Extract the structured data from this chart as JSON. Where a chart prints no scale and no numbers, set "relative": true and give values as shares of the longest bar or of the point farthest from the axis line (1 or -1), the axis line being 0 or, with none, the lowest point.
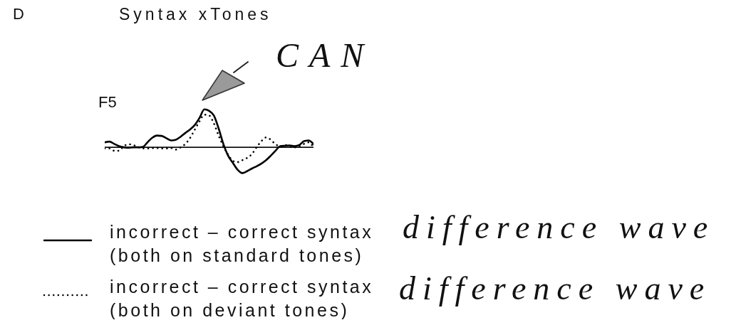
{
  "chart_data": {
    "type": "line",
    "title": "Syntax xTones",
    "annotations": [
      "D",
      "F5",
      "CAN",
      "difference wave",
      "difference wave"
    ],
    "categories": [
      null,
      null,
      null,
      null,
      null,
      null,
      null,
      null,
      null,
      null,
      null,
      null,
      null,
      null,
      null,
      null,
      null,
      null,
      null,
      null,
      null,
      null,
      null,
      null,
      null,
      null,
      null,
      null,
      null,
      null,
      null,
      null,
      null,
      null,
      null,
      null,
      null,
      null,
      null,
      null,
      null,
      null,
      null,
      null,
      null
    ],
    "relative": true,
    "legend": "bottom left",
    "series": [
      {
        "name": "incorrect – correct syntax (both on standard tones)",
        "color": "#000000",
        "line_style": "solid",
        "values": [
          0.13,
          0.15,
          0.09,
          0.03,
          0,
          -0.01,
          0,
          0,
          0.01,
          0.13,
          0.25,
          0.31,
          0.3,
          0.24,
          0.18,
          0.2,
          0.28,
          0.38,
          0.47,
          0.59,
          0.78,
          1,
          0.96,
          0.84,
          0.5,
          0.09,
          -0.22,
          -0.41,
          -0.59,
          -0.68,
          -0.63,
          -0.56,
          -0.5,
          -0.43,
          -0.34,
          -0.22,
          -0.09,
          0.03,
          0.04,
          0.05,
          0.03,
          0.06,
          0.16,
          0.18,
          0.08
        ]
      },
      {
        "name": "incorrect – correct syntax (both on deviant tones)",
        "color": "#000000",
        "line_style": "dotted",
        "values": [
          -0.03,
          -0.03,
          -0.09,
          -0.09,
          0.03,
          0.08,
          0.06,
          0.01,
          -0.03,
          -0.03,
          -0.02,
          -0.02,
          -0.03,
          -0.03,
          -0.02,
          -0.06,
          0,
          0.09,
          0.25,
          0.47,
          0.69,
          0.86,
          0.84,
          0.63,
          0.31,
          0.03,
          -0.19,
          -0.36,
          -0.39,
          -0.34,
          -0.28,
          -0.18,
          0,
          0.16,
          0.26,
          0.2,
          0.08,
          0.03,
          0.06,
          0.03,
          0,
          0.03,
          0.09,
          0.13,
          0
        ]
      }
    ]
  }
}
